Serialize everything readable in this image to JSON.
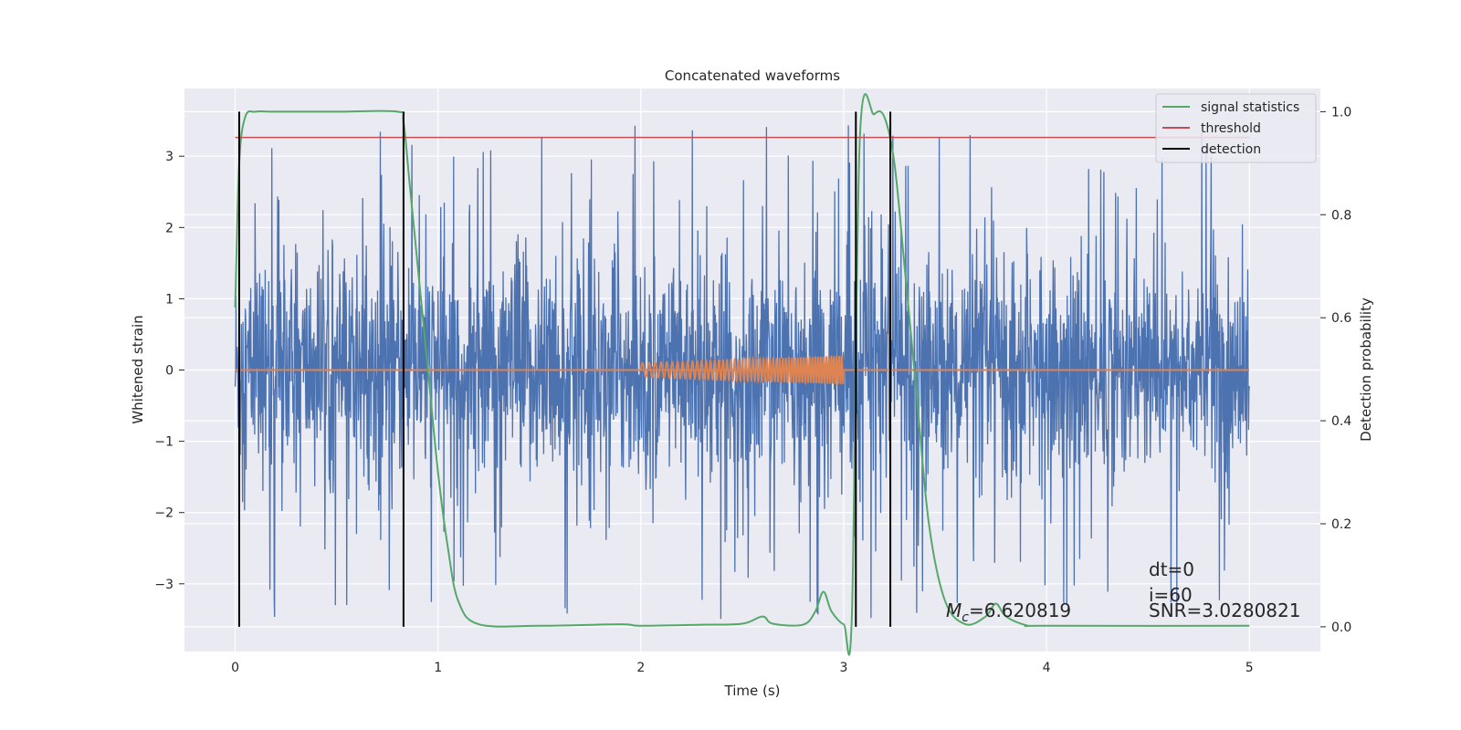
{
  "chart_data": {
    "type": "line",
    "title": "Concatenated waveforms",
    "xlabel": "Time (s)",
    "ylabel": "Whitened strain",
    "ylabel_right": "Detection probability",
    "xlim": [
      -0.25,
      5.35
    ],
    "ylim": [
      -3.95,
      3.95
    ],
    "ylim_right": [
      -0.048,
      1.045
    ],
    "x_ticks": [
      0,
      1,
      2,
      3,
      4,
      5
    ],
    "y_ticks": [
      -3,
      -2,
      -1,
      0,
      1,
      2,
      3
    ],
    "y_ticks_right": [
      0.0,
      0.2,
      0.4,
      0.6,
      0.8,
      1.0
    ],
    "grid": true,
    "legend_position": "top-right",
    "colors": {
      "strain": "#4c72b0",
      "template": "#dd8452",
      "signal_statistics": "#55a868",
      "threshold": "#c44e52",
      "detection": "#000000",
      "plot_bg": "#eaeaf2",
      "grid": "#ffffff"
    },
    "series": [
      {
        "name": "signal statistics",
        "axis": "right",
        "x": [
          0.0,
          0.02,
          0.05,
          0.1,
          0.2,
          0.5,
          0.8,
          0.83,
          0.86,
          0.9,
          0.95,
          1.0,
          1.05,
          1.1,
          1.2,
          1.5,
          1.9,
          2.0,
          2.3,
          2.5,
          2.6,
          2.65,
          2.8,
          2.86,
          2.9,
          2.94,
          3.0,
          3.04,
          3.08,
          3.15,
          3.2,
          3.25,
          3.3,
          3.36,
          3.42,
          3.5,
          3.6,
          3.7,
          3.75,
          3.8,
          3.9,
          4.0,
          5.0
        ],
        "values": [
          0.62,
          0.9,
          0.99,
          1.0,
          1.0,
          1.0,
          1.0,
          0.98,
          0.86,
          0.7,
          0.5,
          0.3,
          0.15,
          0.05,
          0.005,
          0.002,
          0.005,
          0.002,
          0.004,
          0.006,
          0.02,
          0.006,
          0.004,
          0.03,
          0.068,
          0.03,
          0.005,
          0.02,
          0.95,
          0.995,
          0.99,
          0.9,
          0.7,
          0.45,
          0.2,
          0.05,
          0.005,
          0.02,
          0.045,
          0.02,
          0.003,
          0.002,
          0.002
        ]
      },
      {
        "name": "threshold",
        "axis": "right",
        "x": [
          0,
          5
        ],
        "values": [
          0.95,
          0.95
        ]
      },
      {
        "name": "detection",
        "axis": "right",
        "x": [
          0.02,
          0.83,
          3.06,
          3.23
        ],
        "ymin": 0.0,
        "ymax": 1.0
      }
    ],
    "noise": {
      "x_range": [
        0,
        5
      ],
      "envelope": 0.75,
      "peak_range": [
        -3.6,
        3.6
      ]
    },
    "template": {
      "x_range": [
        2.0,
        3.0
      ],
      "amp_start": 0.1,
      "amp_end": 0.2
    },
    "legend": [
      "signal statistics",
      "threshold",
      "detection"
    ],
    "annotations": {
      "dt": "dt=0",
      "i": "i=60",
      "mc_symbol": "M",
      "mc_sub": "c",
      "mc_value": "=6.620819",
      "snr": "SNR=3.0280821"
    }
  }
}
